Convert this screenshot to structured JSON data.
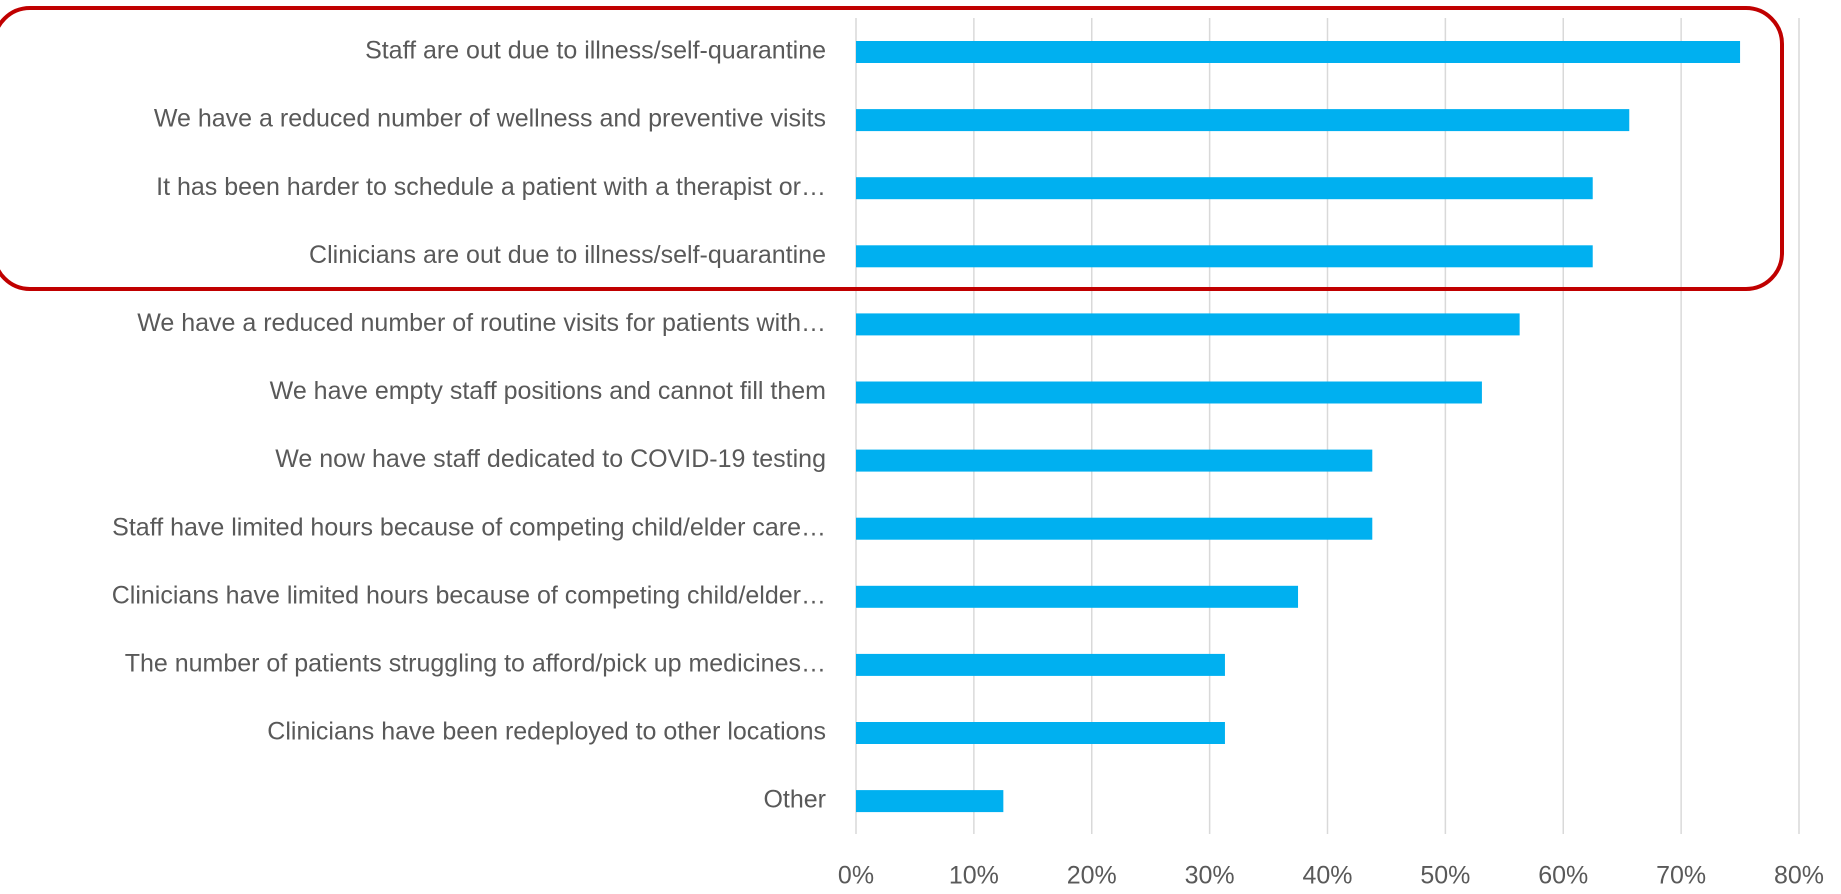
{
  "chart_data": {
    "type": "bar",
    "orientation": "horizontal",
    "categories": [
      "Staff are out due to illness/self-quarantine",
      "We have a reduced number of wellness and preventive visits",
      "It has been harder to schedule a patient with a therapist or…",
      "Clinicians are out due to illness/self-quarantine",
      "We have a reduced number of routine visits for patients with…",
      "We have empty staff positions and cannot fill them",
      "We now have staff dedicated to COVID-19 testing",
      "Staff have limited hours because of competing child/elder care…",
      "Clinicians have limited hours because of competing child/elder…",
      "The number of patients struggling to afford/pick up medicines…",
      "Clinicians have been redeployed to other locations",
      "Other"
    ],
    "values": [
      75,
      65.6,
      62.5,
      62.5,
      56.3,
      53.1,
      43.8,
      43.8,
      37.5,
      31.3,
      31.3,
      12.5
    ],
    "color": "#00b0f0",
    "xlim": [
      0,
      80
    ],
    "xticks": [
      {
        "value": 0,
        "label": "0%"
      },
      {
        "value": 10,
        "label": "10%"
      },
      {
        "value": 20,
        "label": "20%"
      },
      {
        "value": 30,
        "label": "30%"
      },
      {
        "value": 40,
        "label": "40%"
      },
      {
        "value": 50,
        "label": "50%"
      },
      {
        "value": 60,
        "label": "60%"
      },
      {
        "value": 70,
        "label": "70%"
      },
      {
        "value": 80,
        "label": "80%"
      }
    ],
    "grid": true
  }
}
